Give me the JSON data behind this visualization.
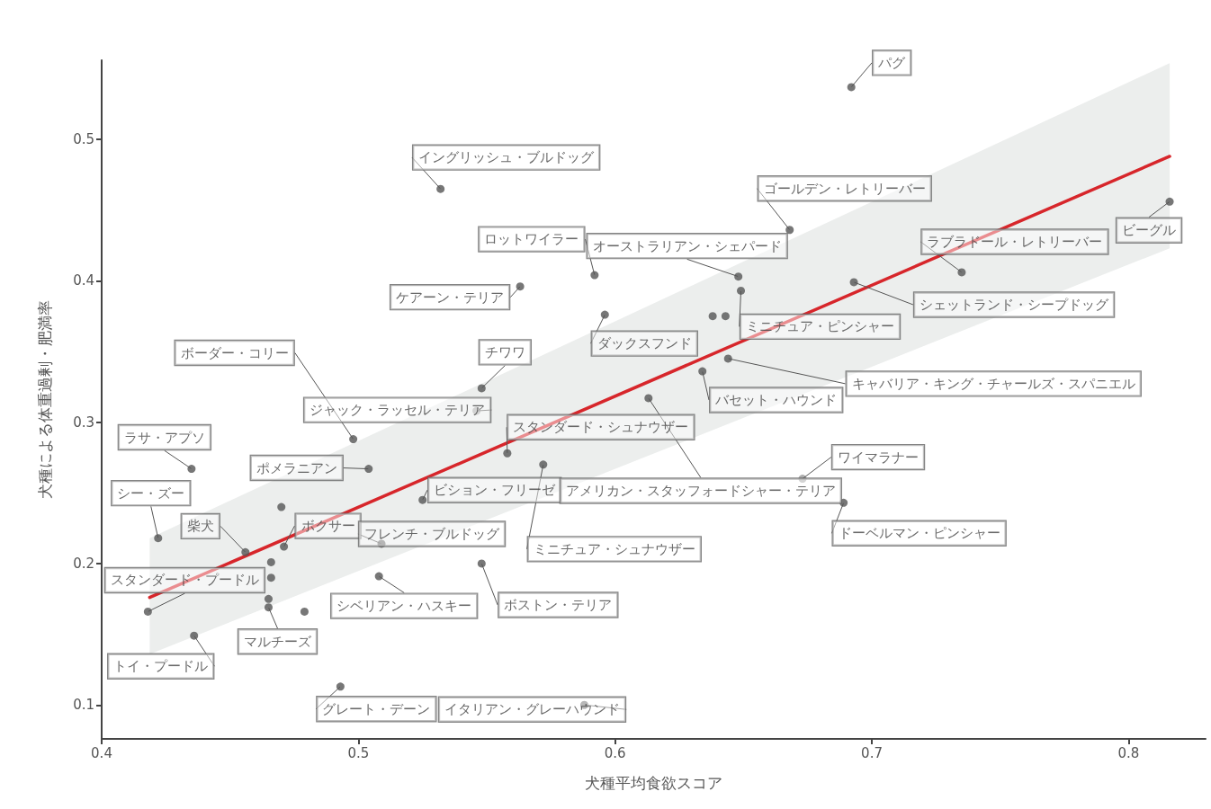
{
  "chart_data": {
    "type": "scatter",
    "xlabel": "犬種平均食欲スコア",
    "ylabel": "犬種による体重過剰・肥満率",
    "xlim": [
      0.4,
      0.83
    ],
    "ylim": [
      0.076,
      0.556
    ],
    "xticks": [
      0.4,
      0.5,
      0.6,
      0.7,
      0.8
    ],
    "yticks": [
      0.1,
      0.2,
      0.3,
      0.4,
      0.5
    ],
    "grid": false,
    "marker": "circle",
    "series": [
      {
        "x": [
          0.692,
          0.532,
          0.668,
          0.816,
          0.592,
          0.563,
          0.735,
          0.693,
          0.648,
          0.649,
          0.596,
          0.638,
          0.643,
          0.634,
          0.644,
          0.548,
          0.546,
          0.613,
          0.498,
          0.558,
          0.572,
          0.525,
          0.673,
          0.689,
          0.435,
          0.504,
          0.47,
          0.422,
          0.456,
          0.471,
          0.466,
          0.466,
          0.509,
          0.508,
          0.548,
          0.418,
          0.465,
          0.465,
          0.479,
          0.436,
          0.493,
          0.588
        ],
        "values": [
          0.537,
          0.465,
          0.436,
          0.456,
          0.404,
          0.396,
          0.406,
          0.399,
          0.403,
          0.393,
          0.376,
          0.375,
          0.375,
          0.336,
          0.345,
          0.324,
          0.308,
          0.317,
          0.288,
          0.278,
          0.27,
          0.245,
          0.26,
          0.243,
          0.267,
          0.267,
          0.24,
          0.218,
          0.208,
          0.212,
          0.201,
          0.19,
          0.214,
          0.191,
          0.2,
          0.166,
          0.175,
          0.169,
          0.166,
          0.149,
          0.113,
          0.1
        ],
        "colors": [
          "#555555",
          "#555555",
          "#555555",
          "#555555",
          "#555555",
          "#555555",
          "#555555",
          "#555555",
          "#555555",
          "#555555",
          "#555555",
          "#555555",
          "#555555",
          "#555555",
          "#555555",
          "#555555",
          "#999999",
          "#555555",
          "#555555",
          "#555555",
          "#555555",
          "#555555",
          "#999999",
          "#555555",
          "#555555",
          "#555555",
          "#555555",
          "#555555",
          "#555555",
          "#555555",
          "#555555",
          "#555555",
          "#555555",
          "#555555",
          "#555555",
          "#555555",
          "#555555",
          "#555555",
          "#555555",
          "#555555",
          "#555555",
          "#555555"
        ]
      },
      {
        "type": "line",
        "x": [
          0.4187,
          0.816
        ],
        "values": [
          0.176,
          0.488
        ],
        "lower": [
          0.136,
          0.423
        ],
        "upper": [
          0.218,
          0.554
        ],
        "color": "#d7262b",
        "line_style": "solid",
        "marker": "none"
      }
    ],
    "annotations": [
      {
        "text": "パグ",
        "x": 0.692,
        "y": 0.537
      },
      {
        "text": "イングリッシュ・ブルドッグ",
        "x": 0.532,
        "y": 0.465
      },
      {
        "text": "ゴールデン・レトリーバー",
        "x": 0.668,
        "y": 0.436
      },
      {
        "text": "ビーグル",
        "x": 0.816,
        "y": 0.456
      },
      {
        "text": "ロットワイラー",
        "x": 0.592,
        "y": 0.404
      },
      {
        "text": "オーストラリアン・シェパード",
        "x": 0.648,
        "y": 0.403
      },
      {
        "text": "ケアーン・テリア",
        "x": 0.563,
        "y": 0.396
      },
      {
        "text": "ラブラドール・レトリーバー",
        "x": 0.735,
        "y": 0.406
      },
      {
        "text": "シェットランド・シープドッグ",
        "x": 0.693,
        "y": 0.399
      },
      {
        "text": "ミニチュア・ピンシャー",
        "x": 0.649,
        "y": 0.393
      },
      {
        "text": "ダックスフンド",
        "x": 0.596,
        "y": 0.376
      },
      {
        "text": "チワワ",
        "x": 0.548,
        "y": 0.324
      },
      {
        "text": "ボーダー・コリー",
        "x": 0.498,
        "y": 0.288
      },
      {
        "text": "バセット・ハウンド",
        "x": 0.634,
        "y": 0.336
      },
      {
        "text": "キャバリア・キング・チャールズ・スパニエル",
        "x": 0.644,
        "y": 0.345
      },
      {
        "text": "ジャック・ラッセル・テリア",
        "x": 0.546,
        "y": 0.308
      },
      {
        "text": "スタンダード・シュナウザー",
        "x": 0.558,
        "y": 0.278
      },
      {
        "text": "ラサ・アプソ",
        "x": 0.435,
        "y": 0.267
      },
      {
        "text": "ポメラニアン",
        "x": 0.504,
        "y": 0.267
      },
      {
        "text": "ワイマラナー",
        "x": 0.673,
        "y": 0.26
      },
      {
        "text": "ビション・フリーゼ",
        "x": 0.525,
        "y": 0.245
      },
      {
        "text": "アメリカン・スタッフォードシャー・テリア",
        "x": 0.613,
        "y": 0.317
      },
      {
        "text": "シー・ズー",
        "x": 0.422,
        "y": 0.218
      },
      {
        "text": "柴犬",
        "x": 0.456,
        "y": 0.208
      },
      {
        "text": "ボクサー",
        "x": 0.471,
        "y": 0.212
      },
      {
        "text": "フレンチ・ブルドッグ",
        "x": 0.509,
        "y": 0.214
      },
      {
        "text": "ドーベルマン・ピンシャー",
        "x": 0.689,
        "y": 0.243
      },
      {
        "text": "ミニチュア・シュナウザー",
        "x": 0.572,
        "y": 0.27
      },
      {
        "text": "スタンダード・プードル",
        "x": 0.418,
        "y": 0.166
      },
      {
        "text": "シベリアン・ハスキー",
        "x": 0.508,
        "y": 0.191
      },
      {
        "text": "ボストン・テリア",
        "x": 0.548,
        "y": 0.2
      },
      {
        "text": "マルチーズ",
        "x": 0.465,
        "y": 0.169
      },
      {
        "text": "トイ・プードル",
        "x": 0.436,
        "y": 0.149
      },
      {
        "text": "グレート・デーン",
        "x": 0.493,
        "y": 0.113
      },
      {
        "text": "イタリアン・グレーハウンド",
        "x": 0.588,
        "y": 0.1
      }
    ]
  }
}
